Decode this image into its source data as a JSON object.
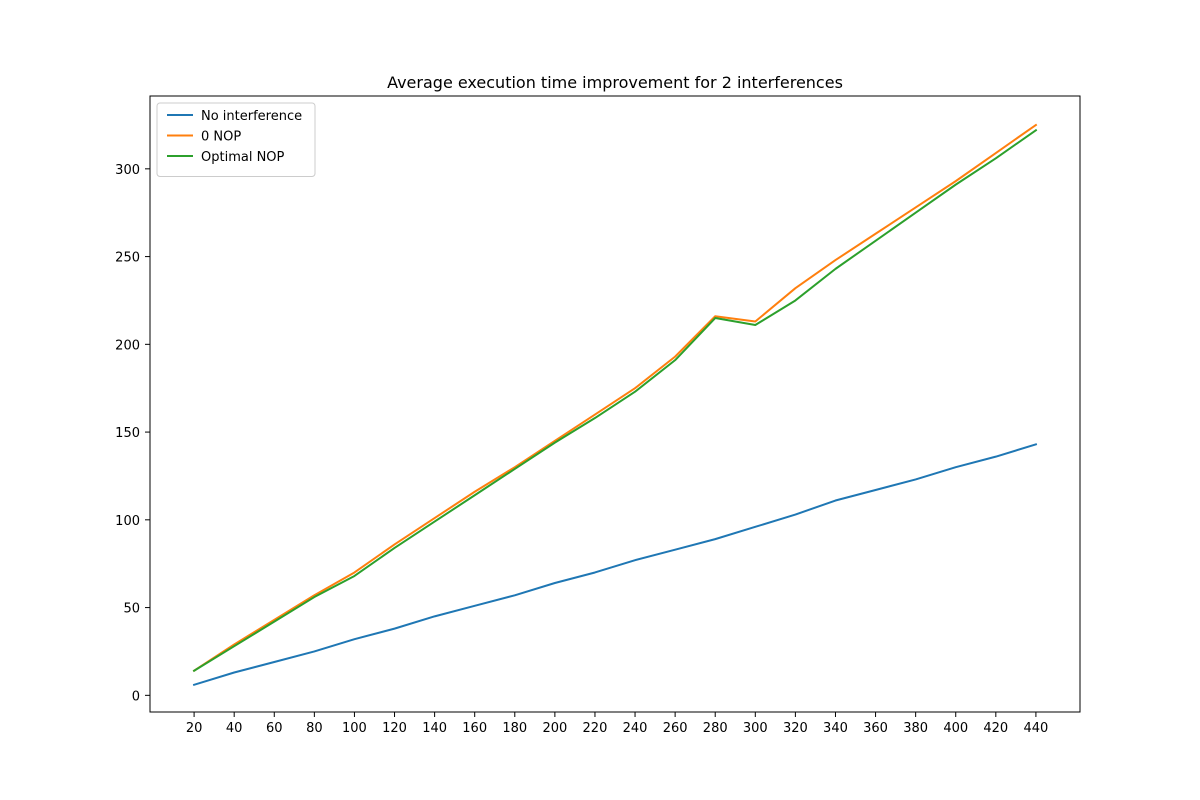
{
  "chart_data": {
    "type": "line",
    "title": "Average execution time improvement for 2 interferences",
    "xlabel": "",
    "ylabel": "",
    "x": [
      20,
      40,
      60,
      80,
      100,
      120,
      140,
      160,
      180,
      200,
      220,
      240,
      260,
      280,
      300,
      320,
      340,
      360,
      380,
      400,
      420,
      440
    ],
    "xlim": [
      -2,
      462
    ],
    "ylim": [
      -9.5,
      341.5
    ],
    "xticks": [
      20,
      40,
      60,
      80,
      100,
      120,
      140,
      160,
      180,
      200,
      220,
      240,
      260,
      280,
      300,
      320,
      340,
      360,
      380,
      400,
      420,
      440
    ],
    "yticks": [
      0,
      50,
      100,
      150,
      200,
      250,
      300
    ],
    "grid": false,
    "legend_position": "top-left",
    "series": [
      {
        "name": "No interference",
        "color": "#1f77b4",
        "values": [
          6,
          13,
          19,
          25,
          32,
          38,
          45,
          51,
          57,
          64,
          70,
          77,
          83,
          89,
          96,
          103,
          111,
          117,
          123,
          130,
          136,
          143
        ]
      },
      {
        "name": "0 NOP",
        "color": "#ff7f0e",
        "values": [
          14,
          29,
          43,
          57,
          70,
          86,
          101,
          116,
          130,
          145,
          160,
          175,
          193,
          216,
          213,
          232,
          248,
          263,
          278,
          293,
          309,
          325
        ]
      },
      {
        "name": "Optimal NOP",
        "color": "#2ca02c",
        "values": [
          14,
          28,
          42,
          56,
          68,
          84,
          99,
          114,
          129,
          144,
          158,
          173,
          191,
          215,
          211,
          225,
          243,
          259,
          275,
          291,
          306,
          322
        ]
      }
    ]
  }
}
